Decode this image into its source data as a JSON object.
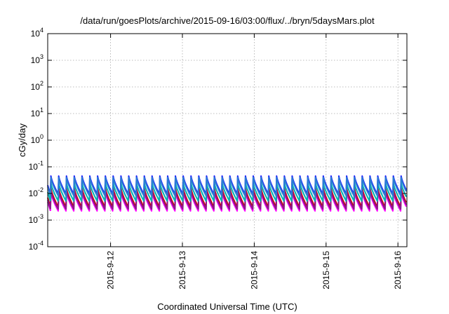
{
  "chart_data": {
    "type": "line",
    "title": "/data/run/goesPlots/archive/2015-09-16/03:00/flux/../bryn/5daysMars.plot",
    "xlabel": "Coordinated Universal Time (UTC)",
    "ylabel": "cGy/day",
    "yscale": "log",
    "ylim": [
      0.0001,
      10000
    ],
    "xlim": [
      "2015-09-11T03:00",
      "2015-09-16T03:00"
    ],
    "grid": true,
    "y_tick_labels": [
      {
        "base": "10",
        "exp": "-4",
        "value": 0.0001
      },
      {
        "base": "10",
        "exp": "-3",
        "value": 0.001
      },
      {
        "base": "10",
        "exp": "-2",
        "value": 0.01
      },
      {
        "base": "10",
        "exp": "-1",
        "value": 0.1
      },
      {
        "base": "10",
        "exp": "0",
        "value": 1
      },
      {
        "base": "10",
        "exp": "1",
        "value": 10
      },
      {
        "base": "10",
        "exp": "2",
        "value": 100
      },
      {
        "base": "10",
        "exp": "3",
        "value": 1000
      },
      {
        "base": "10",
        "exp": "4",
        "value": 10000
      }
    ],
    "x_ticks": [
      {
        "label": "2015-9-12",
        "date": "2015-09-12T00:00"
      },
      {
        "label": "2015-9-13",
        "date": "2015-09-13T00:00"
      },
      {
        "label": "2015-9-14",
        "date": "2015-09-14T00:00"
      },
      {
        "label": "2015-9-15",
        "date": "2015-09-15T00:00"
      },
      {
        "label": "2015-9-16",
        "date": "2015-09-16T00:00"
      }
    ],
    "sawtooth_period_hours": 2.6,
    "series": [
      {
        "color": "#ff00ff",
        "peak": 0.011,
        "trough": 0.0022
      },
      {
        "color": "#cc0000",
        "peak": 0.016,
        "trough": 0.0031
      },
      {
        "color": "#8b1a8b",
        "peak": 0.013,
        "trough": 0.0026
      },
      {
        "color": "#00b3b3",
        "peak": 0.025,
        "trough": 0.0052
      },
      {
        "color": "#1a1aff",
        "peak": 0.045,
        "trough": 0.0095
      },
      {
        "color": "#2a7bd4",
        "peak": 0.04,
        "trough": 0.0082
      }
    ]
  }
}
